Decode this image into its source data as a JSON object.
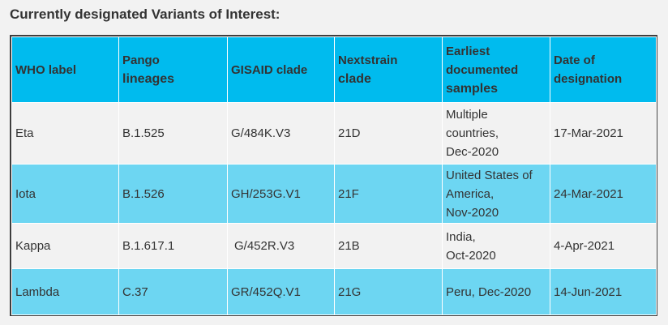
{
  "title": "Currently designated Variants of Interest:",
  "table": {
    "headers": {
      "who_label": "WHO label",
      "pango_1": "Pango",
      "pango_2": "lineages",
      "gisaid": "GISAID clade",
      "nextstrain_1": "Nextstrain",
      "nextstrain_2": "clade",
      "earliest_1": "Earliest",
      "earliest_2": "documented",
      "earliest_3": "samples",
      "date_1": "Date of",
      "date_2": "designation"
    },
    "rows": [
      {
        "who": "Eta",
        "pango": "B.1.525",
        "gisaid": "G/484K.V3",
        "nextstrain": "21D",
        "earliest": [
          "Multiple",
          "countries,",
          "Dec-2020"
        ],
        "date": "17-Mar-2021"
      },
      {
        "who": "Iota",
        "pango": "B.1.526",
        "gisaid": "GH/253G.V1",
        "nextstrain": "21F",
        "earliest": [
          "United States of",
          "America,",
          "Nov-2020"
        ],
        "date": "24-Mar-2021"
      },
      {
        "who": "Kappa",
        "pango": "B.1.617.1",
        "gisaid": "G/452R.V3",
        "nextstrain": "21B",
        "earliest": [
          "India,",
          "Oct-2020"
        ],
        "date": "4-Apr-2021"
      },
      {
        "who": "Lambda",
        "pango": "C.37",
        "gisaid": "GR/452Q.V1",
        "nextstrain": "21G",
        "earliest": [
          "Peru, Dec-2020"
        ],
        "date": "14-Jun-2021"
      }
    ]
  },
  "colors": {
    "header_bg": "#00bbee",
    "alt_row_bg": "#6dd6f2",
    "plain_row_bg": "#f2f2f2",
    "border": "#3d3d3d",
    "text": "#333333"
  }
}
